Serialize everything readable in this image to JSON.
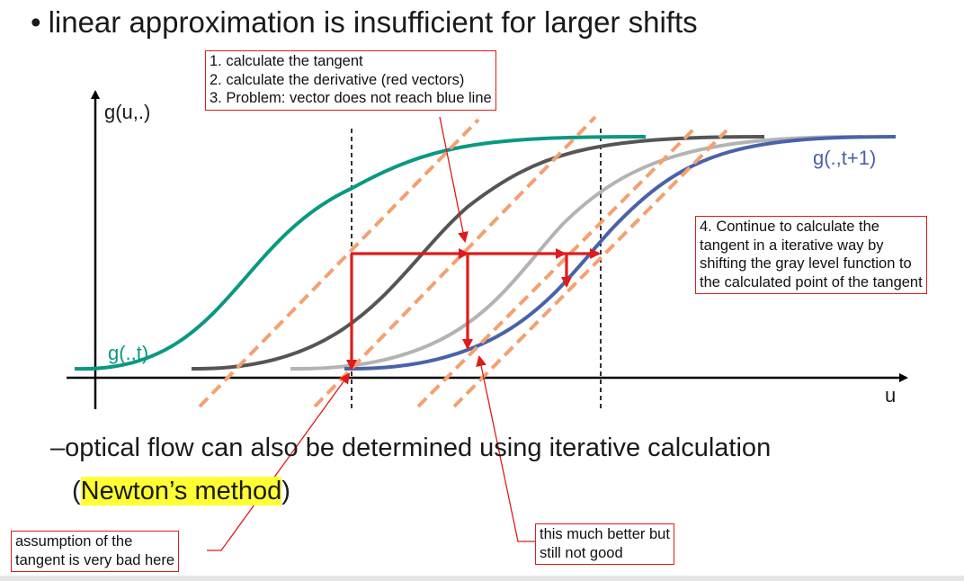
{
  "title": {
    "bullet": "•",
    "text": "linear approximation is insufficient for larger shifts"
  },
  "diagram": {
    "y_axis_label": "g(u,.)",
    "x_axis_label": "u",
    "curve_t_label": "g(.,t)",
    "curve_t1_label": "g(.,t+1)",
    "colors": {
      "curve_t": "#0a9882",
      "curve_t1": "#4a62a8",
      "curve_dark_gray": "#555555",
      "curve_light_gray": "#b3b3b3",
      "tangent": "#f4a070",
      "vector": "#e01b1b",
      "callout_border": "#e01b1b",
      "highlight": "#ffff33"
    }
  },
  "callouts": {
    "steps": [
      "1. calculate the tangent",
      "2. calculate the derivative (red vectors)",
      "3. Problem: vector does not reach blue line"
    ],
    "continue": [
      "4. Continue to calculate the",
      "tangent in a iterative way by",
      "shifting the gray level function to",
      "the calculated point of the tangent"
    ],
    "better": [
      "this much better but",
      "still not good"
    ],
    "bad": [
      "assumption of the",
      "tangent is very bad here"
    ]
  },
  "subbullet": {
    "dash": "–",
    "text": "optical flow can also be determined using iterative calculation",
    "paren_open": "(",
    "method": "Newton’s method",
    "paren_close": ")"
  }
}
